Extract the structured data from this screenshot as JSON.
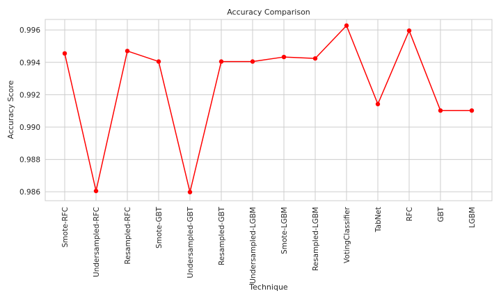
{
  "chart_data": {
    "type": "line",
    "title": "Accuracy Comparison",
    "xlabel": "Technique",
    "ylabel": "Accuracy Score",
    "categories": [
      "Smote-RFC",
      "Undersampled-RFC",
      "Resampled-RFC",
      "Smote-GBT",
      "Undersampled-GBT",
      "Resampled-GBT",
      "Undersampled-LGBM",
      "Smote-LGBM",
      "Resampled-LGBM",
      "VotingClassifier",
      "TabNet",
      "RFC",
      "GBT",
      "LGBM"
    ],
    "series": [
      {
        "values": [
          0.99455,
          0.98605,
          0.9947,
          0.99405,
          0.98598,
          0.99405,
          0.99405,
          0.99433,
          0.99424,
          0.99627,
          0.99142,
          0.99596,
          0.99102,
          0.99102
        ],
        "color": "#ff0000"
      }
    ],
    "ylim": [
      0.98545,
      0.99665
    ],
    "yticks": [
      "0.986",
      "0.988",
      "0.990",
      "0.992",
      "0.994",
      "0.996"
    ],
    "grid": true,
    "marker": "circle"
  }
}
